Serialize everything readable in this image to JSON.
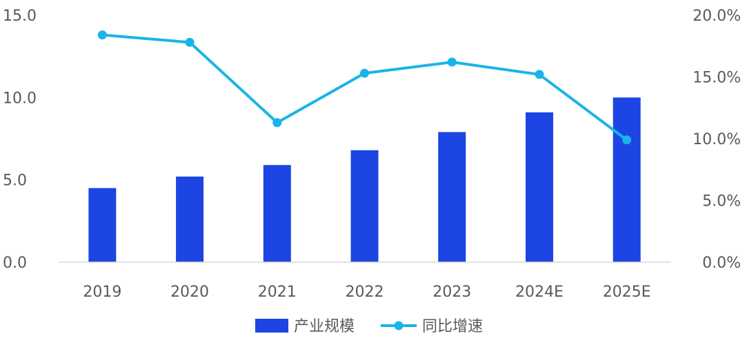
{
  "chart_data": {
    "type": "bar",
    "categories": [
      "2019",
      "2020",
      "2021",
      "2022",
      "2023",
      "2024E",
      "2025E"
    ],
    "series": [
      {
        "name": "产业规模",
        "type": "bar",
        "axis": "left",
        "values": [
          4.5,
          5.2,
          5.9,
          6.8,
          7.9,
          9.1,
          10.0
        ]
      },
      {
        "name": "同比增速",
        "type": "line",
        "axis": "right",
        "values": [
          18.4,
          17.8,
          11.3,
          15.3,
          16.2,
          15.2,
          9.9
        ]
      }
    ],
    "y_left": {
      "ticks": [
        "0.0",
        "5.0",
        "10.0",
        "15.0"
      ],
      "ylim": [
        0,
        15
      ]
    },
    "y_right": {
      "ticks": [
        "0.0%",
        "5.0%",
        "10.0%",
        "15.0%",
        "20.0%"
      ],
      "ylim": [
        0,
        20
      ]
    },
    "legend_position": "bottom",
    "grid": false,
    "colors": {
      "bar": "#1c45e3",
      "line": "#1ab4e8",
      "axis": "#d9d9d9",
      "text": "#595959"
    }
  }
}
